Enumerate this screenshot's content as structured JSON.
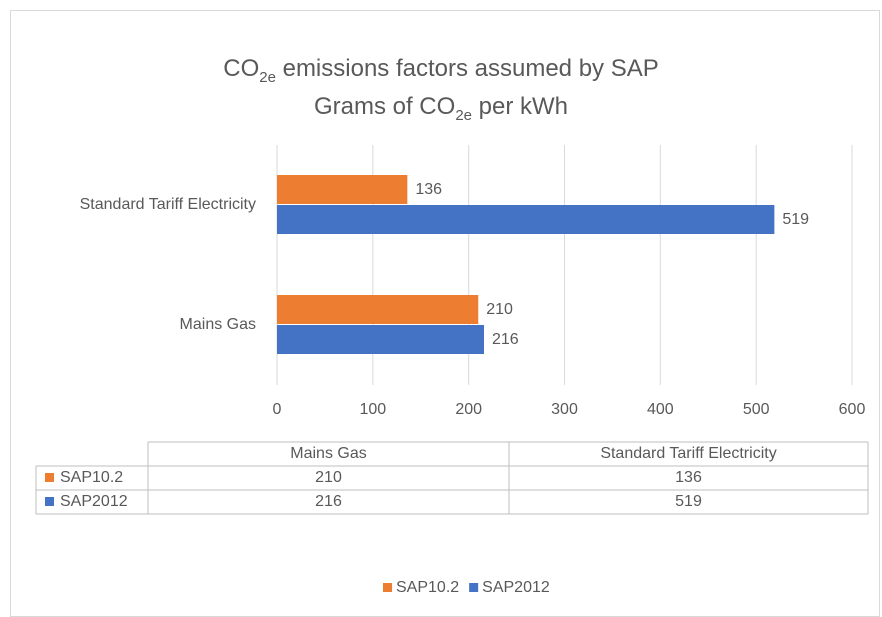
{
  "chart_data": {
    "type": "hbar",
    "title": [
      [
        {
          "text": "CO",
          "sub": false
        },
        {
          "text": "2e",
          "sub": true
        },
        {
          "text": " emissions factors assumed by SAP",
          "sub": false
        }
      ],
      [
        {
          "text": "Grams of CO",
          "sub": false
        },
        {
          "text": "2e",
          "sub": true
        },
        {
          "text": " per kWh",
          "sub": false
        }
      ]
    ],
    "categories": [
      "Mains Gas",
      "Standard Tariff Electricity"
    ],
    "series": [
      {
        "name": "SAP10.2",
        "color": "#ed7d31",
        "values": [
          210,
          136
        ]
      },
      {
        "name": "SAP2012",
        "color": "#4472c4",
        "values": [
          216,
          519
        ]
      }
    ],
    "xlim": [
      0,
      600
    ],
    "xticks": [
      0,
      100,
      200,
      300,
      400,
      500,
      600
    ],
    "grid": true,
    "data_table": true,
    "legend": "bottom"
  }
}
